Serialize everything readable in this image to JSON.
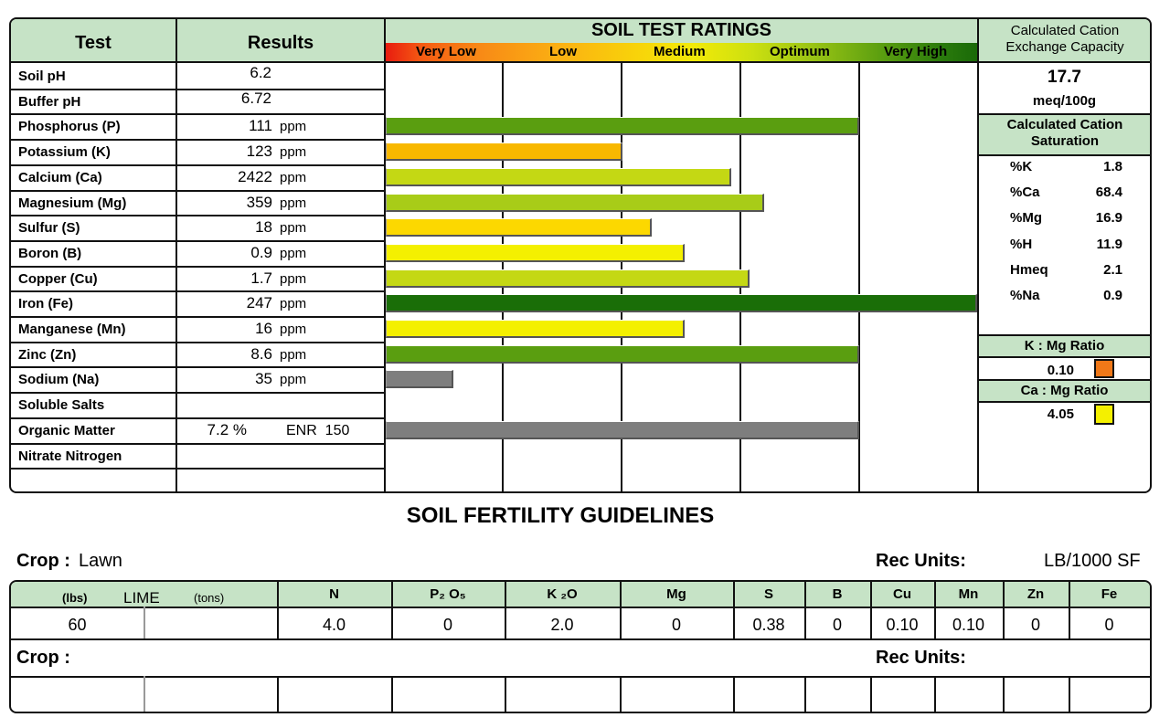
{
  "test_table": {
    "col_test": "Test",
    "col_results": "Results",
    "ratings_title": "SOIL TEST RATINGS",
    "scale": [
      "Very Low",
      "Low",
      "Medium",
      "Optimum",
      "Very High"
    ],
    "rows": [
      {
        "label": "Soil pH",
        "value": "6.2",
        "unit": ""
      },
      {
        "label": "Buffer pH",
        "value": "6.72",
        "unit": ""
      },
      {
        "label": "Phosphorus (P)",
        "value": "111",
        "unit": "ppm"
      },
      {
        "label": "Potassium (K)",
        "value": "123",
        "unit": "ppm"
      },
      {
        "label": "Calcium (Ca)",
        "value": "2422",
        "unit": "ppm"
      },
      {
        "label": "Magnesium (Mg)",
        "value": "359",
        "unit": "ppm"
      },
      {
        "label": "Sulfur (S)",
        "value": "18",
        "unit": "ppm"
      },
      {
        "label": "Boron (B)",
        "value": "0.9",
        "unit": "ppm"
      },
      {
        "label": "Copper (Cu)",
        "value": "1.7",
        "unit": "ppm"
      },
      {
        "label": "Iron (Fe)",
        "value": "247",
        "unit": "ppm"
      },
      {
        "label": "Manganese (Mn)",
        "value": "16",
        "unit": "ppm"
      },
      {
        "label": "Zinc (Zn)",
        "value": "8.6",
        "unit": "ppm"
      },
      {
        "label": "Sodium (Na)",
        "value": "35",
        "unit": "ppm"
      },
      {
        "label": "Soluble Salts",
        "value": "",
        "unit": ""
      },
      {
        "label": "Organic Matter",
        "value": "7.2 %",
        "unit": "ENR  150"
      },
      {
        "label": "Nitrate Nitrogen",
        "value": "",
        "unit": ""
      }
    ],
    "bars": [
      {
        "row": 2,
        "level": 0.8,
        "color": "#5a9e10"
      },
      {
        "row": 3,
        "level": 0.4,
        "color": "#f8b800"
      },
      {
        "row": 4,
        "level": 0.585,
        "color": "#c4d814"
      },
      {
        "row": 5,
        "level": 0.64,
        "color": "#a8cc18"
      },
      {
        "row": 6,
        "level": 0.45,
        "color": "#fcd800"
      },
      {
        "row": 7,
        "level": 0.505,
        "color": "#f4f000"
      },
      {
        "row": 8,
        "level": 0.615,
        "color": "#c4d814"
      },
      {
        "row": 9,
        "level": 1.0,
        "color": "#1a6e08"
      },
      {
        "row": 10,
        "level": 0.505,
        "color": "#f4f000"
      },
      {
        "row": 11,
        "level": 0.8,
        "color": "#5a9e10"
      },
      {
        "row": 12,
        "level": 0.115,
        "color": "#7e7e7e"
      },
      {
        "row": 14,
        "level": 0.8,
        "color": "#7e7e7e"
      }
    ]
  },
  "cec": {
    "title": "Calculated Cation Exchange Capacity",
    "value": "17.7",
    "unit": "meq/100g",
    "saturation_title": "Calculated Cation Saturation",
    "saturation": [
      {
        "label": "%K",
        "value": "1.8"
      },
      {
        "label": "%Ca",
        "value": "68.4"
      },
      {
        "label": "%Mg",
        "value": "16.9"
      },
      {
        "label": "%H",
        "value": "11.9"
      },
      {
        "label": "Hmeq",
        "value": "2.1"
      },
      {
        "label": "%Na",
        "value": "0.9"
      }
    ],
    "k_mg_title": "K : Mg Ratio",
    "k_mg_value": "0.10",
    "k_mg_color": "#f07818",
    "ca_mg_title": "Ca : Mg Ratio",
    "ca_mg_value": "4.05",
    "ca_mg_color": "#f4f000"
  },
  "guidelines": {
    "title": "SOIL FERTILITY GUIDELINES",
    "crop_label": "Crop :",
    "crop_value": "Lawn",
    "rec_units_label": "Rec Units:",
    "rec_units_value": "LB/1000 SF",
    "lime_lbs": "(lbs)",
    "lime_label": "LIME",
    "lime_tons": "(tons)",
    "headers": [
      "N",
      "P₂ O₅",
      "K ₂O",
      "Mg",
      "S",
      "B",
      "Cu",
      "Mn",
      "Zn",
      "Fe"
    ],
    "values": [
      "60",
      "",
      "4.0",
      "0",
      "2.0",
      "0",
      "0.38",
      "0",
      "0.10",
      "0.10",
      "0",
      "0"
    ],
    "crop2_label": "Crop :",
    "rec_units2_label": "Rec Units:"
  }
}
